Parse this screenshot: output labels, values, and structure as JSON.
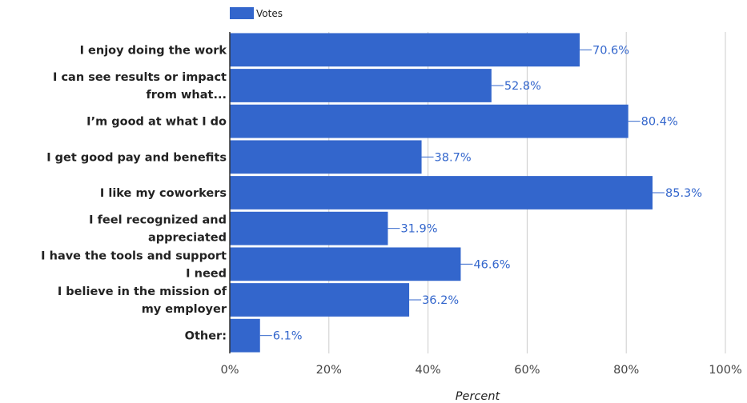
{
  "chart_data": {
    "type": "bar",
    "orientation": "horizontal",
    "categories": [
      [
        "I enjoy doing the work"
      ],
      [
        "I can see results or impact",
        "from what..."
      ],
      [
        "I’m good at what I do"
      ],
      [
        "I get good pay and benefits"
      ],
      [
        "I like my coworkers"
      ],
      [
        "I feel recognized and",
        "appreciated"
      ],
      [
        "I have the tools and support",
        "I need"
      ],
      [
        "I believe in the mission of",
        "my employer"
      ],
      [
        "Other:"
      ]
    ],
    "series": [
      {
        "name": "Votes",
        "color": "#3366cc",
        "values": [
          70.6,
          52.8,
          80.4,
          38.7,
          85.3,
          31.9,
          46.6,
          36.2,
          6.1
        ],
        "labels": [
          "70.6%",
          "52.8%",
          "80.4%",
          "38.7%",
          "85.3%",
          "31.9%",
          "46.6%",
          "36.2%",
          "6.1%"
        ]
      }
    ],
    "xlabel": "Percent",
    "xlim": [
      0,
      100
    ],
    "xticks": [
      0,
      20,
      40,
      60,
      80,
      100
    ],
    "xtick_labels": [
      "0%",
      "20%",
      "40%",
      "60%",
      "80%",
      "100%"
    ],
    "grid": true,
    "legend_position": "top"
  }
}
